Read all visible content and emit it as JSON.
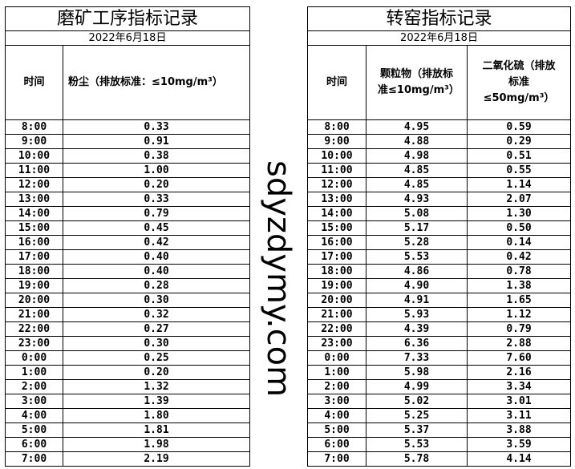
{
  "left": {
    "title": "磨矿工序指标记录",
    "date": "2022年6月18日",
    "headers": [
      "时间",
      "粉尘（排放标准：≤10mg/m³）"
    ],
    "rows": [
      [
        "8:00",
        "0.33"
      ],
      [
        "9:00",
        "0.91"
      ],
      [
        "10:00",
        "0.38"
      ],
      [
        "11:00",
        "1.00"
      ],
      [
        "12:00",
        "0.20"
      ],
      [
        "13:00",
        "0.33"
      ],
      [
        "14:00",
        "0.79"
      ],
      [
        "15:00",
        "0.45"
      ],
      [
        "16:00",
        "0.42"
      ],
      [
        "17:00",
        "0.40"
      ],
      [
        "18:00",
        "0.40"
      ],
      [
        "19:00",
        "0.28"
      ],
      [
        "20:00",
        "0.30"
      ],
      [
        "21:00",
        "0.32"
      ],
      [
        "22:00",
        "0.27"
      ],
      [
        "23:00",
        "0.30"
      ],
      [
        "0:00",
        "0.25"
      ],
      [
        "1:00",
        "0.20"
      ],
      [
        "2:00",
        "1.32"
      ],
      [
        "3:00",
        "1.39"
      ],
      [
        "4:00",
        "1.80"
      ],
      [
        "5:00",
        "1.81"
      ],
      [
        "6:00",
        "1.98"
      ],
      [
        "7:00",
        "2.19"
      ]
    ]
  },
  "right": {
    "title": "转窑指标记录",
    "date": "2022年6月18日",
    "headers": [
      "时间",
      "颗粒物（排放标准≤10mg/m³）",
      "二氧化硫（排放标准≤50mg/m³）"
    ],
    "rows": [
      [
        "8:00",
        "4.95",
        "0.59"
      ],
      [
        "9:00",
        "4.88",
        "0.29"
      ],
      [
        "10:00",
        "4.98",
        "0.51"
      ],
      [
        "11:00",
        "4.85",
        "0.55"
      ],
      [
        "12:00",
        "4.85",
        "1.14"
      ],
      [
        "13:00",
        "4.93",
        "2.07"
      ],
      [
        "14:00",
        "5.08",
        "1.30"
      ],
      [
        "15:00",
        "5.17",
        "0.50"
      ],
      [
        "16:00",
        "5.28",
        "0.14"
      ],
      [
        "17:00",
        "5.53",
        "0.42"
      ],
      [
        "18:00",
        "4.86",
        "0.78"
      ],
      [
        "19:00",
        "4.90",
        "1.38"
      ],
      [
        "20:00",
        "4.91",
        "1.65"
      ],
      [
        "21:00",
        "5.93",
        "1.12"
      ],
      [
        "22:00",
        "4.39",
        "0.79"
      ],
      [
        "23:00",
        "6.36",
        "2.88"
      ],
      [
        "0:00",
        "7.33",
        "7.60"
      ],
      [
        "1:00",
        "5.98",
        "2.16"
      ],
      [
        "2:00",
        "4.99",
        "3.34"
      ],
      [
        "3:00",
        "5.02",
        "3.01"
      ],
      [
        "4:00",
        "5.25",
        "3.11"
      ],
      [
        "5:00",
        "5.37",
        "3.88"
      ],
      [
        "6:00",
        "5.53",
        "3.59"
      ],
      [
        "7:00",
        "5.78",
        "4.14"
      ]
    ]
  },
  "watermark": "sdyzdymy.com"
}
